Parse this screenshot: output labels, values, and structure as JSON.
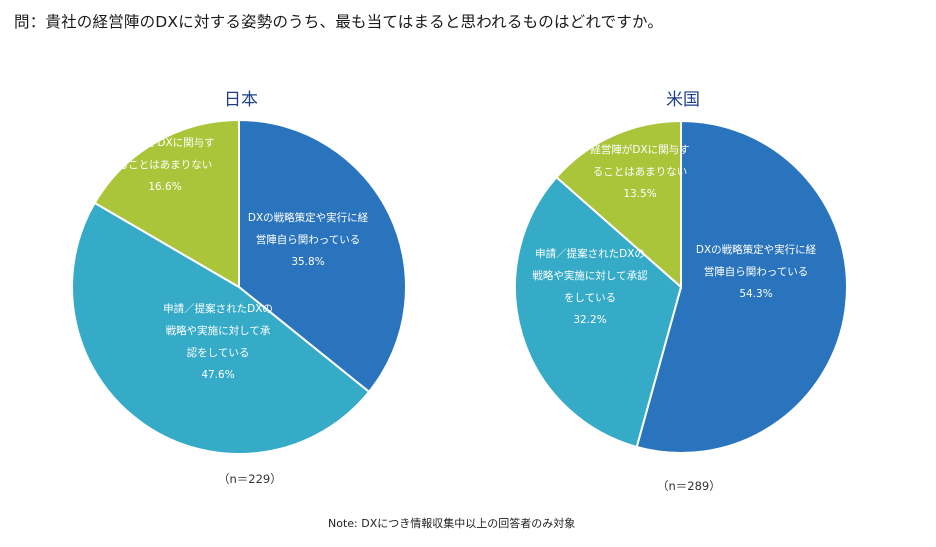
{
  "question": "問：貴社の経営陣のDXに対する姿勢のうち、最も当てはまると思われるものはどれですか。",
  "note": "Note: DXにつき情報収集中以上の回答者のみ対象",
  "chart_data": [
    {
      "type": "pie",
      "title": "日本",
      "n_label": "（n＝229）",
      "slices": [
        {
          "label_lines": [
            "DXの戦略策定や実行に経",
            "営陣自ら関わっている"
          ],
          "value": 35.8,
          "value_label": "35.8%",
          "color": "#2a74bd"
        },
        {
          "label_lines": [
            "申請／提案されたDXの",
            "戦略や実施に対して承",
            "認をしている"
          ],
          "value": 47.6,
          "value_label": "47.6%",
          "color": "#35abc8"
        },
        {
          "label_lines": [
            "経営陣がDXに関与す",
            "ることはあまりない"
          ],
          "value": 16.6,
          "value_label": "16.6%",
          "color": "#aac53a"
        }
      ]
    },
    {
      "type": "pie",
      "title": "米国",
      "n_label": "（n＝289）",
      "slices": [
        {
          "label_lines": [
            "DXの戦略策定や実行に経",
            "営陣自ら関わっている"
          ],
          "value": 54.3,
          "value_label": "54.3%",
          "color": "#2a74bd"
        },
        {
          "label_lines": [
            "申請／提案されたDXの",
            "戦略や実施に対して承認",
            "をしている"
          ],
          "value": 32.2,
          "value_label": "32.2%",
          "color": "#35abc8"
        },
        {
          "label_lines": [
            "経営陣がDXに関与す",
            "ることはあまりない"
          ],
          "value": 13.5,
          "value_label": "13.5%",
          "color": "#aac53a"
        }
      ]
    }
  ]
}
